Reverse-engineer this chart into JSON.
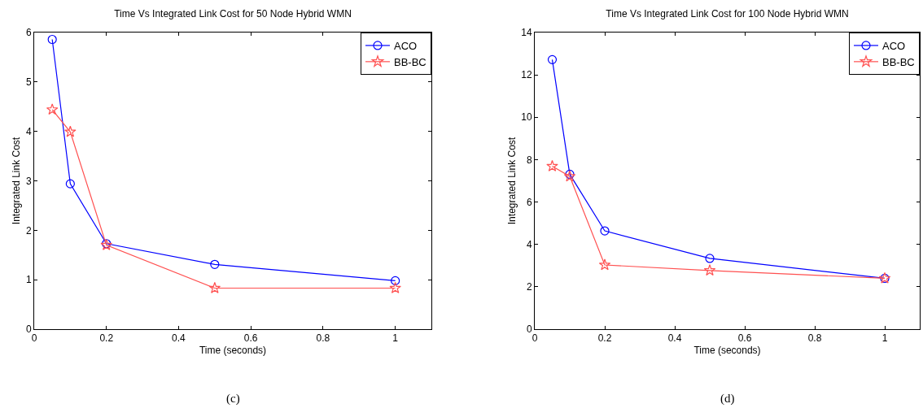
{
  "chart_data": [
    {
      "type": "line",
      "title": "Time Vs Integrated Link Cost for 50 Node Hybrid WMN",
      "xlabel": "Time (seconds)",
      "ylabel": "Integrated Link Cost",
      "x": [
        0.05,
        0.1,
        0.2,
        0.5,
        1
      ],
      "series": [
        {
          "name": "ACO",
          "color": "#0000ff",
          "marker": "circle",
          "line_style": "solid",
          "values": [
            5.86,
            2.94,
            1.73,
            1.31,
            0.98
          ]
        },
        {
          "name": "BB-BC",
          "color": "#ff5050",
          "marker": "star",
          "line_style": "solid",
          "values": [
            4.44,
            3.99,
            1.7,
            0.83,
            0.83
          ]
        }
      ],
      "xlim": [
        0,
        1.1
      ],
      "xticks": [
        0,
        0.2,
        0.4,
        0.6,
        0.8,
        1
      ],
      "ylim": [
        0,
        6
      ],
      "yticks": [
        0,
        1,
        2,
        3,
        4,
        5,
        6
      ],
      "grid": false,
      "legend": "top right",
      "annotations": [
        "(c)"
      ]
    },
    {
      "type": "line",
      "title": "Time Vs Integrated Link Cost for 100 Node Hybrid WMN",
      "xlabel": "Time (seconds)",
      "ylabel": "Integrated Link Cost",
      "x": [
        0.05,
        0.1,
        0.2,
        0.5,
        1
      ],
      "series": [
        {
          "name": "ACO",
          "color": "#0000ff",
          "marker": "circle",
          "line_style": "solid",
          "values": [
            12.72,
            7.31,
            4.64,
            3.34,
            2.4
          ]
        },
        {
          "name": "BB-BC",
          "color": "#ff5050",
          "marker": "star",
          "line_style": "solid",
          "values": [
            7.69,
            7.21,
            3.03,
            2.77,
            2.4
          ]
        }
      ],
      "xlim": [
        0,
        1.1
      ],
      "xticks": [
        0,
        0.2,
        0.4,
        0.6,
        0.8,
        1
      ],
      "ylim": [
        0,
        14
      ],
      "yticks": [
        0,
        2,
        4,
        6,
        8,
        10,
        12,
        14
      ],
      "grid": false,
      "legend": "top right",
      "annotations": [
        "(d)"
      ]
    }
  ]
}
